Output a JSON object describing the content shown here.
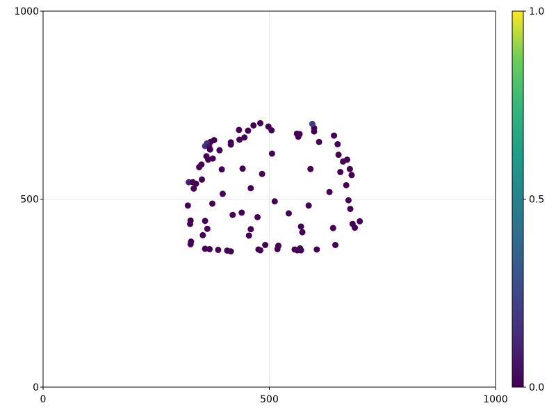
{
  "chart_data": {
    "type": "scatter",
    "title": "",
    "xlabel": "",
    "ylabel": "",
    "xlim": [
      0,
      1000
    ],
    "ylim": [
      0,
      1000
    ],
    "x_ticks": [
      {
        "value": 0,
        "label": "0"
      },
      {
        "value": 500,
        "label": "500"
      },
      {
        "value": 1000,
        "label": "1000"
      }
    ],
    "y_ticks": [
      {
        "value": 0,
        "label": "0"
      },
      {
        "value": 500,
        "label": "500"
      },
      {
        "value": 1000,
        "label": "1000"
      }
    ],
    "grid": true,
    "colormap": "viridis",
    "colorbar": {
      "range": [
        0,
        1
      ],
      "ticks": [
        {
          "value": 0,
          "label": "0.0"
        },
        {
          "value": 0.5,
          "label": "0.5"
        },
        {
          "value": 1,
          "label": "1.0"
        }
      ]
    },
    "points": [
      {
        "x": 480,
        "y": 702,
        "c": 0.0
      },
      {
        "x": 498,
        "y": 693,
        "c": 0.0
      },
      {
        "x": 505,
        "y": 683,
        "c": 0.0
      },
      {
        "x": 465,
        "y": 696,
        "c": 0.0
      },
      {
        "x": 453,
        "y": 682,
        "c": 0.0
      },
      {
        "x": 433,
        "y": 684,
        "c": 0.0
      },
      {
        "x": 445,
        "y": 664,
        "c": 0.0
      },
      {
        "x": 434,
        "y": 658,
        "c": 0.0
      },
      {
        "x": 415,
        "y": 651,
        "c": 0.0
      },
      {
        "x": 415,
        "y": 645,
        "c": 0.0
      },
      {
        "x": 378,
        "y": 657,
        "c": 0.0
      },
      {
        "x": 370,
        "y": 652,
        "c": 0.0
      },
      {
        "x": 362,
        "y": 648,
        "c": 0.15
      },
      {
        "x": 358,
        "y": 641,
        "c": 0.15
      },
      {
        "x": 367,
        "y": 640,
        "c": 0.05
      },
      {
        "x": 369,
        "y": 632,
        "c": 0.0
      },
      {
        "x": 390,
        "y": 630,
        "c": 0.0
      },
      {
        "x": 361,
        "y": 614,
        "c": 0.0
      },
      {
        "x": 375,
        "y": 608,
        "c": 0.0
      },
      {
        "x": 365,
        "y": 605,
        "c": 0.0
      },
      {
        "x": 350,
        "y": 592,
        "c": 0.0
      },
      {
        "x": 345,
        "y": 585,
        "c": 0.0
      },
      {
        "x": 395,
        "y": 579,
        "c": 0.0
      },
      {
        "x": 441,
        "y": 581,
        "c": 0.0
      },
      {
        "x": 484,
        "y": 567,
        "c": 0.0
      },
      {
        "x": 506,
        "y": 621,
        "c": 0.0
      },
      {
        "x": 351,
        "y": 552,
        "c": 0.0
      },
      {
        "x": 322,
        "y": 545,
        "c": 0.1
      },
      {
        "x": 331,
        "y": 545,
        "c": 0.0
      },
      {
        "x": 338,
        "y": 541,
        "c": 0.0
      },
      {
        "x": 333,
        "y": 528,
        "c": 0.0
      },
      {
        "x": 397,
        "y": 514,
        "c": 0.0
      },
      {
        "x": 459,
        "y": 529,
        "c": 0.0
      },
      {
        "x": 374,
        "y": 488,
        "c": 0.0
      },
      {
        "x": 320,
        "y": 483,
        "c": 0.0
      },
      {
        "x": 512,
        "y": 494,
        "c": 0.0
      },
      {
        "x": 439,
        "y": 464,
        "c": 0.0
      },
      {
        "x": 419,
        "y": 458,
        "c": 0.0
      },
      {
        "x": 474,
        "y": 452,
        "c": 0.0
      },
      {
        "x": 543,
        "y": 462,
        "c": 0.0
      },
      {
        "x": 326,
        "y": 443,
        "c": 0.0
      },
      {
        "x": 358,
        "y": 442,
        "c": 0.0
      },
      {
        "x": 325,
        "y": 434,
        "c": 0.0
      },
      {
        "x": 363,
        "y": 421,
        "c": 0.0
      },
      {
        "x": 459,
        "y": 420,
        "c": 0.0
      },
      {
        "x": 570,
        "y": 427,
        "c": 0.0
      },
      {
        "x": 573,
        "y": 412,
        "c": 0.0
      },
      {
        "x": 353,
        "y": 404,
        "c": 0.0
      },
      {
        "x": 455,
        "y": 403,
        "c": 0.0
      },
      {
        "x": 327,
        "y": 387,
        "c": 0.0
      },
      {
        "x": 326,
        "y": 380,
        "c": 0.0
      },
      {
        "x": 491,
        "y": 378,
        "c": 0.0
      },
      {
        "x": 520,
        "y": 376,
        "c": 0.0
      },
      {
        "x": 358,
        "y": 368,
        "c": 0.0
      },
      {
        "x": 368,
        "y": 367,
        "c": 0.0
      },
      {
        "x": 387,
        "y": 365,
        "c": 0.0
      },
      {
        "x": 407,
        "y": 363,
        "c": 0.0
      },
      {
        "x": 415,
        "y": 361,
        "c": 0.0
      },
      {
        "x": 476,
        "y": 366,
        "c": 0.0
      },
      {
        "x": 480,
        "y": 364,
        "c": 0.0
      },
      {
        "x": 518,
        "y": 367,
        "c": 0.0
      },
      {
        "x": 556,
        "y": 366,
        "c": 0.0
      },
      {
        "x": 562,
        "y": 364,
        "c": 0.0
      },
      {
        "x": 568,
        "y": 369,
        "c": 0.0
      },
      {
        "x": 570,
        "y": 364,
        "c": 0.0
      },
      {
        "x": 605,
        "y": 366,
        "c": 0.0
      },
      {
        "x": 646,
        "y": 378,
        "c": 0.0
      },
      {
        "x": 641,
        "y": 423,
        "c": 0.0
      },
      {
        "x": 587,
        "y": 483,
        "c": 0.0
      },
      {
        "x": 684,
        "y": 434,
        "c": 0.0
      },
      {
        "x": 689,
        "y": 424,
        "c": 0.0
      },
      {
        "x": 700,
        "y": 441,
        "c": 0.0
      },
      {
        "x": 679,
        "y": 474,
        "c": 0.0
      },
      {
        "x": 675,
        "y": 497,
        "c": 0.0
      },
      {
        "x": 633,
        "y": 519,
        "c": 0.0
      },
      {
        "x": 670,
        "y": 537,
        "c": 0.0
      },
      {
        "x": 657,
        "y": 572,
        "c": 0.0
      },
      {
        "x": 678,
        "y": 580,
        "c": 0.0
      },
      {
        "x": 682,
        "y": 564,
        "c": 0.0
      },
      {
        "x": 591,
        "y": 580,
        "c": 0.0
      },
      {
        "x": 663,
        "y": 600,
        "c": 0.0
      },
      {
        "x": 672,
        "y": 605,
        "c": 0.0
      },
      {
        "x": 653,
        "y": 618,
        "c": 0.0
      },
      {
        "x": 651,
        "y": 646,
        "c": 0.0
      },
      {
        "x": 643,
        "y": 669,
        "c": 0.0
      },
      {
        "x": 610,
        "y": 652,
        "c": 0.0
      },
      {
        "x": 599,
        "y": 680,
        "c": 0.0
      },
      {
        "x": 599,
        "y": 689,
        "c": 0.0
      },
      {
        "x": 595,
        "y": 700,
        "c": 0.2
      },
      {
        "x": 561,
        "y": 674,
        "c": 0.0
      },
      {
        "x": 567,
        "y": 673,
        "c": 0.0
      },
      {
        "x": 564,
        "y": 666,
        "c": 0.0
      }
    ]
  }
}
